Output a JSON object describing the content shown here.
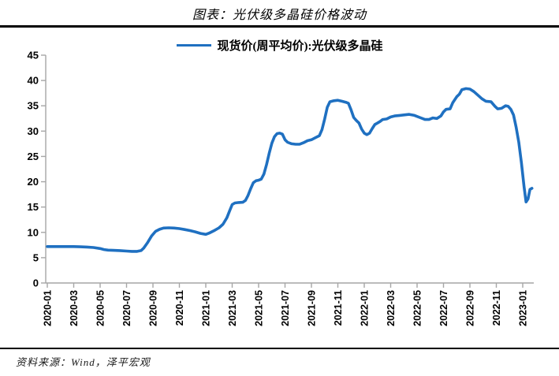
{
  "page": {
    "title": "图表：光伏级多晶硅价格波动",
    "source": "资料来源：Wind，泽平宏观"
  },
  "chart_data": {
    "type": "line",
    "title": "图表：光伏级多晶硅价格波动",
    "legend_position": "top-center",
    "grid": false,
    "axis_color": "#a6a6a6",
    "line_color": "#1f70c1",
    "ylim": [
      0,
      45
    ],
    "y_ticks": [
      0,
      5,
      10,
      15,
      20,
      25,
      30,
      35,
      40,
      45
    ],
    "x_unit": "months since 2020-01",
    "x_tick_interval_months": 2,
    "x_tick_labels": [
      "2020-01",
      "2020-03",
      "2020-05",
      "2020-07",
      "2020-09",
      "2020-11",
      "2021-01",
      "2021-03",
      "2021-05",
      "2021-07",
      "2021-09",
      "2021-11",
      "2022-01",
      "2022-03",
      "2022-05",
      "2022-07",
      "2022-09",
      "2022-11",
      "2023-01"
    ],
    "series": [
      {
        "name": "现货价(周平均价):光伏级多晶硅",
        "color": "#1f70c1",
        "points": [
          [
            0,
            7.2
          ],
          [
            0.5,
            7.2
          ],
          [
            1,
            7.2
          ],
          [
            1.5,
            7.2
          ],
          [
            2,
            7.2
          ],
          [
            2.5,
            7.15
          ],
          [
            3,
            7.1
          ],
          [
            3.5,
            7.0
          ],
          [
            4,
            6.8
          ],
          [
            4.3,
            6.6
          ],
          [
            4.6,
            6.5
          ],
          [
            5,
            6.45
          ],
          [
            5.5,
            6.4
          ],
          [
            6,
            6.3
          ],
          [
            6.4,
            6.25
          ],
          [
            6.8,
            6.25
          ],
          [
            7.1,
            6.4
          ],
          [
            7.3,
            6.9
          ],
          [
            7.6,
            8.0
          ],
          [
            7.9,
            9.3
          ],
          [
            8.2,
            10.2
          ],
          [
            8.5,
            10.6
          ],
          [
            8.8,
            10.85
          ],
          [
            9.2,
            10.9
          ],
          [
            9.6,
            10.85
          ],
          [
            10,
            10.75
          ],
          [
            10.4,
            10.55
          ],
          [
            10.8,
            10.35
          ],
          [
            11.2,
            10.1
          ],
          [
            11.6,
            9.8
          ],
          [
            12,
            9.6
          ],
          [
            12.3,
            9.9
          ],
          [
            12.6,
            10.3
          ],
          [
            13,
            10.9
          ],
          [
            13.3,
            11.6
          ],
          [
            13.6,
            12.9
          ],
          [
            13.8,
            14.2
          ],
          [
            14,
            15.5
          ],
          [
            14.2,
            15.8
          ],
          [
            14.5,
            15.9
          ],
          [
            14.8,
            15.95
          ],
          [
            15,
            16.3
          ],
          [
            15.2,
            17.3
          ],
          [
            15.4,
            18.6
          ],
          [
            15.6,
            19.8
          ],
          [
            15.8,
            20.2
          ],
          [
            16,
            20.3
          ],
          [
            16.2,
            20.5
          ],
          [
            16.4,
            21.5
          ],
          [
            16.6,
            23.4
          ],
          [
            16.8,
            25.6
          ],
          [
            17,
            27.6
          ],
          [
            17.2,
            28.9
          ],
          [
            17.4,
            29.5
          ],
          [
            17.6,
            29.6
          ],
          [
            17.8,
            29.4
          ],
          [
            18,
            28.3
          ],
          [
            18.2,
            27.8
          ],
          [
            18.5,
            27.5
          ],
          [
            18.8,
            27.4
          ],
          [
            19.1,
            27.4
          ],
          [
            19.4,
            27.7
          ],
          [
            19.7,
            28.1
          ],
          [
            20,
            28.3
          ],
          [
            20.3,
            28.7
          ],
          [
            20.6,
            29.1
          ],
          [
            20.8,
            30.3
          ],
          [
            21,
            32.4
          ],
          [
            21.2,
            34.7
          ],
          [
            21.4,
            35.8
          ],
          [
            21.7,
            36.0
          ],
          [
            22,
            36.1
          ],
          [
            22.3,
            35.9
          ],
          [
            22.6,
            35.7
          ],
          [
            22.8,
            35.5
          ],
          [
            23,
            34.2
          ],
          [
            23.2,
            32.7
          ],
          [
            23.4,
            32.1
          ],
          [
            23.6,
            31.6
          ],
          [
            23.8,
            30.4
          ],
          [
            24,
            29.6
          ],
          [
            24.2,
            29.3
          ],
          [
            24.4,
            29.6
          ],
          [
            24.6,
            30.5
          ],
          [
            24.8,
            31.3
          ],
          [
            25,
            31.6
          ],
          [
            25.2,
            31.9
          ],
          [
            25.4,
            32.3
          ],
          [
            25.7,
            32.4
          ],
          [
            26,
            32.8
          ],
          [
            26.3,
            33.0
          ],
          [
            26.7,
            33.1
          ],
          [
            27,
            33.2
          ],
          [
            27.4,
            33.3
          ],
          [
            27.8,
            33.1
          ],
          [
            28.2,
            32.7
          ],
          [
            28.6,
            32.3
          ],
          [
            28.9,
            32.3
          ],
          [
            29.2,
            32.6
          ],
          [
            29.5,
            32.5
          ],
          [
            29.8,
            33.0
          ],
          [
            30,
            33.8
          ],
          [
            30.2,
            34.3
          ],
          [
            30.5,
            34.4
          ],
          [
            30.7,
            35.6
          ],
          [
            31,
            36.8
          ],
          [
            31.2,
            37.3
          ],
          [
            31.4,
            38.2
          ],
          [
            31.7,
            38.4
          ],
          [
            32,
            38.3
          ],
          [
            32.3,
            37.8
          ],
          [
            32.6,
            37.1
          ],
          [
            32.9,
            36.4
          ],
          [
            33.2,
            35.9
          ],
          [
            33.6,
            35.8
          ],
          [
            33.9,
            34.9
          ],
          [
            34.1,
            34.4
          ],
          [
            34.4,
            34.5
          ],
          [
            34.7,
            35.0
          ],
          [
            34.9,
            34.9
          ],
          [
            35.1,
            34.3
          ],
          [
            35.3,
            33.2
          ],
          [
            35.5,
            30.8
          ],
          [
            35.7,
            27.8
          ],
          [
            35.9,
            23.8
          ],
          [
            36.1,
            19.0
          ],
          [
            36.25,
            16.0
          ],
          [
            36.4,
            16.6
          ],
          [
            36.55,
            18.5
          ],
          [
            36.7,
            18.7
          ]
        ]
      }
    ]
  }
}
